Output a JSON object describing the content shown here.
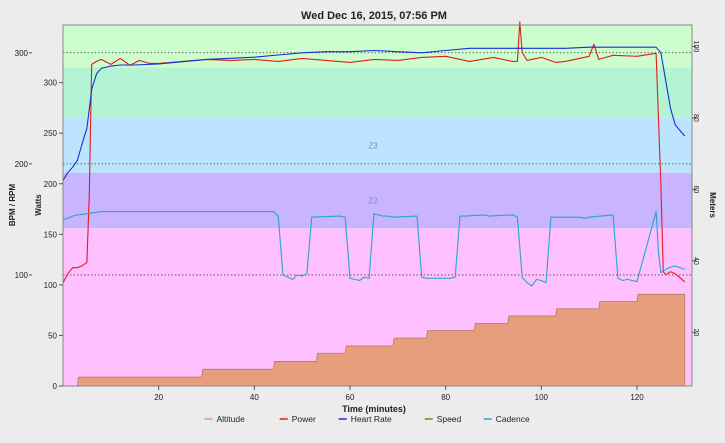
{
  "chart_data": {
    "type": "line",
    "title": "Wed Dec 16, 2015, 07:56 PM",
    "xlabel": "Time (minutes)",
    "ylabel_left_outer": "BPM / RPM",
    "ylabel_left_inner": "Watts",
    "ylabel_right": "Meters",
    "xlim": [
      0,
      131.5
    ],
    "x_ticks": [
      20,
      40,
      60,
      80,
      100,
      120
    ],
    "bpm_lim": [
      0,
      325
    ],
    "bpm_ticks": [
      100,
      200,
      300
    ],
    "watts_lim": [
      0,
      357
    ],
    "watts_ticks": [
      0,
      50,
      100,
      150,
      200,
      250,
      300
    ],
    "meters_lim": [
      5,
      106
    ],
    "meters_ticks": [
      20,
      40,
      60,
      80,
      100
    ],
    "zones": [
      {
        "label": "",
        "from": 0,
        "to": 156,
        "color": "#ffc0ff"
      },
      {
        "label": "Z2",
        "from": 156,
        "to": 211,
        "color": "#c8b4ff"
      },
      {
        "label": "Z3",
        "from": 211,
        "to": 265,
        "color": "#bde4ff"
      },
      {
        "label": "",
        "from": 265,
        "to": 315,
        "color": "#b4f4d4"
      },
      {
        "label": "",
        "from": 315,
        "to": 357,
        "color": "#cdfccd"
      }
    ],
    "reference_lines_bpm": [
      100,
      200,
      300
    ],
    "series": [
      {
        "name": "Altitude",
        "color": "#e39a6e",
        "axis": "meters",
        "x": [
          0,
          3,
          3.2,
          29,
          29.2,
          44,
          44.2,
          53,
          53.2,
          59,
          59.2,
          69,
          69.2,
          76,
          76.2,
          86,
          86.2,
          93,
          93.2,
          103,
          103.2,
          112,
          112.2,
          120,
          120.2,
          130
        ],
        "values": [
          5,
          5,
          7.5,
          7.5,
          9.7,
          9.7,
          11.9,
          11.9,
          14.2,
          14.2,
          16.2,
          16.2,
          18.4,
          18.4,
          20.5,
          20.5,
          22.5,
          22.5,
          24.6,
          24.6,
          26.6,
          26.6,
          28.6,
          28.6,
          30.7,
          30.7
        ]
      },
      {
        "name": "Power",
        "color": "#e11d1d",
        "axis": "watts",
        "x": [
          0,
          1,
          2,
          3,
          4,
          5,
          5.5,
          6,
          7,
          8,
          10,
          12,
          14,
          16,
          18,
          20,
          25,
          30,
          35,
          40,
          45,
          50,
          55,
          60,
          65,
          70,
          75,
          80,
          85,
          90,
          94,
          95,
          95.5,
          96,
          97,
          100,
          103,
          105,
          110,
          111,
          112,
          115,
          120,
          124,
          125,
          125.5,
          126,
          127,
          128,
          129,
          130
        ],
        "values": [
          102,
          111,
          117,
          117,
          119,
          122,
          190,
          318,
          321,
          323,
          318,
          324,
          317,
          322,
          319,
          319,
          321,
          323,
          322,
          323,
          321,
          324,
          322,
          320,
          323,
          322,
          325,
          326,
          321,
          325,
          321,
          321,
          360,
          330,
          322,
          325,
          320,
          321,
          326,
          338,
          323,
          327,
          326,
          329,
          198,
          113,
          110,
          113,
          111,
          107,
          103
        ]
      },
      {
        "name": "Heart Rate",
        "color": "#1630d2",
        "axis": "bpm",
        "x": [
          0,
          1,
          2,
          3,
          4,
          5,
          6,
          7,
          8,
          10,
          12,
          15,
          20,
          25,
          30,
          35,
          40,
          45,
          50,
          55,
          60,
          65,
          70,
          75,
          80,
          85,
          90,
          95,
          100,
          105,
          110,
          115,
          120,
          124,
          125,
          126,
          127,
          128,
          130
        ],
        "values": [
          185,
          192,
          197,
          203,
          218,
          232,
          267,
          281,
          286,
          288,
          289,
          289,
          290,
          292,
          294,
          295,
          296,
          298,
          300,
          301,
          301,
          302,
          301,
          300,
          302,
          304,
          304,
          304,
          304,
          304,
          305,
          305,
          305,
          305,
          300,
          275,
          250,
          235,
          225
        ]
      },
      {
        "name": "Speed",
        "color": "#6b8e23",
        "axis": "bpm",
        "x": [],
        "values": []
      },
      {
        "name": "Cadence",
        "color": "#27a6c9",
        "axis": "bpm",
        "x": [
          0,
          1,
          2,
          3,
          5,
          8,
          10,
          15,
          20,
          25,
          30,
          35,
          40,
          44,
          45,
          46,
          47,
          48,
          49,
          50,
          51,
          52,
          58,
          59,
          60,
          61,
          62,
          63,
          64,
          65,
          66,
          67,
          68,
          69,
          74,
          75,
          76,
          77,
          80,
          81,
          82,
          83,
          84,
          88,
          89,
          94,
          95,
          96,
          97,
          98,
          99,
          100,
          101,
          102,
          108,
          109,
          110,
          115,
          116,
          117,
          118,
          119,
          120,
          124,
          124.5,
          125,
          126,
          127,
          128,
          130
        ],
        "values": [
          150,
          151,
          153,
          154,
          155,
          157,
          157,
          157,
          157,
          157,
          157,
          157,
          157,
          157,
          153,
          100,
          98,
          96,
          100,
          99,
          101,
          152,
          153,
          152,
          97,
          96,
          95,
          98,
          97,
          155,
          154,
          153,
          153,
          152,
          153,
          98,
          97,
          97,
          97,
          97,
          98,
          153,
          153,
          154,
          153,
          154,
          152,
          98,
          93,
          90,
          96,
          95,
          93,
          152,
          152,
          151,
          152,
          154,
          97,
          95,
          96,
          95,
          94,
          157,
          120,
          102,
          105,
          107,
          108,
          105
        ]
      }
    ],
    "legend": {
      "placement": "bottom-center",
      "entries": [
        "Altitude",
        "Power",
        "Heart Rate",
        "Speed",
        "Cadence"
      ]
    }
  }
}
